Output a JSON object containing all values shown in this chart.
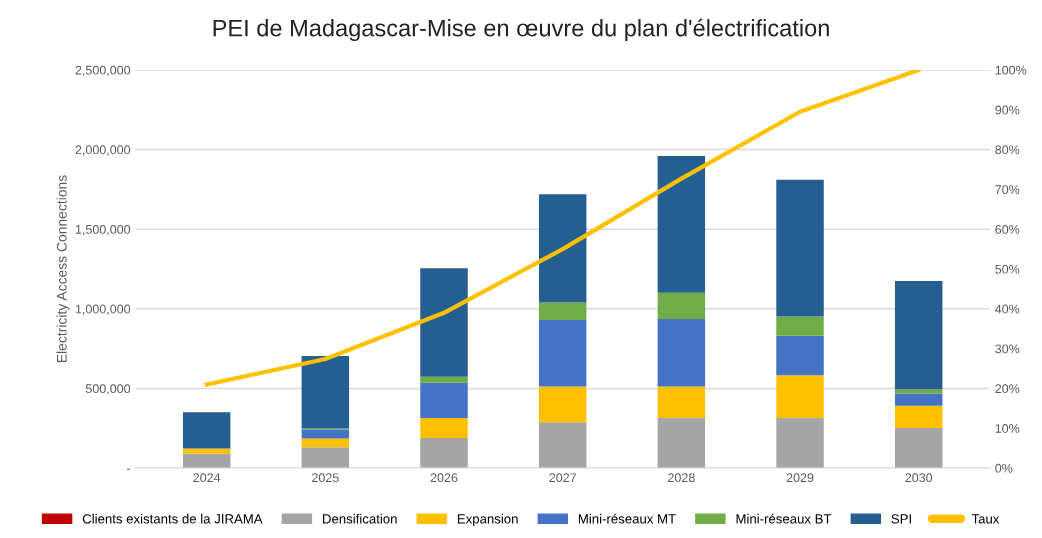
{
  "chart_data": {
    "type": "bar",
    "title": "PEI de Madagascar-Mise en œuvre du plan d'électrification",
    "ylabel": "Electricity Access Connections",
    "categories": [
      "2024",
      "2025",
      "2026",
      "2027",
      "2028",
      "2029",
      "2030"
    ],
    "stacked": true,
    "series": [
      {
        "name": "Clients existants de la JIRAMA",
        "color": "#c00000",
        "values": [
          null,
          null,
          null,
          null,
          null,
          null,
          null
        ]
      },
      {
        "name": "Densification",
        "color": "#a5a5a5",
        "values": [
          92000,
          130000,
          189000,
          287000,
          315000,
          315000,
          251000
        ]
      },
      {
        "name": "Expansion",
        "color": "#ffc000",
        "values": [
          31000,
          55000,
          126000,
          225000,
          197000,
          268000,
          141000
        ]
      },
      {
        "name": "Mini-réseaux MT",
        "color": "#4472c4",
        "values": [
          null,
          57000,
          220000,
          418000,
          424000,
          248000,
          74000
        ]
      },
      {
        "name": "Mini-réseaux BT",
        "color": "#70ad47",
        "values": [
          null,
          6000,
          38000,
          109000,
          165000,
          120000,
          28000
        ]
      },
      {
        "name": "SPI",
        "color": "#255e91",
        "values": [
          227000,
          455000,
          682000,
          681000,
          858000,
          860000,
          681000
        ]
      },
      {
        "name": "Taux",
        "type": "line",
        "axis": "y2",
        "color": "#ffc000",
        "values": [
          21,
          27.4,
          39,
          55,
          72.7,
          89.5,
          100
        ]
      }
    ],
    "ylim": [
      0,
      2500000
    ],
    "yticks": [
      {
        "value": 0,
        "label": "-"
      },
      {
        "value": 500000,
        "label": "500,000"
      },
      {
        "value": 1000000,
        "label": "1,000,000"
      },
      {
        "value": 1500000,
        "label": "1,500,000"
      },
      {
        "value": 2000000,
        "label": "2,000,000"
      },
      {
        "value": 2500000,
        "label": "2,500,000"
      }
    ],
    "y2lim": [
      0,
      100
    ],
    "y2ticks": [
      {
        "value": 0,
        "label": "0%"
      },
      {
        "value": 10,
        "label": "10%"
      },
      {
        "value": 20,
        "label": "20%"
      },
      {
        "value": 30,
        "label": "30%"
      },
      {
        "value": 40,
        "label": "40%"
      },
      {
        "value": 50,
        "label": "50%"
      },
      {
        "value": 60,
        "label": "60%"
      },
      {
        "value": 70,
        "label": "70%"
      },
      {
        "value": 80,
        "label": "80%"
      },
      {
        "value": 90,
        "label": "90%"
      },
      {
        "value": 100,
        "label": "100%"
      }
    ],
    "grid": "y",
    "legend": "bottom",
    "line_style": "solid",
    "marker": "none"
  }
}
